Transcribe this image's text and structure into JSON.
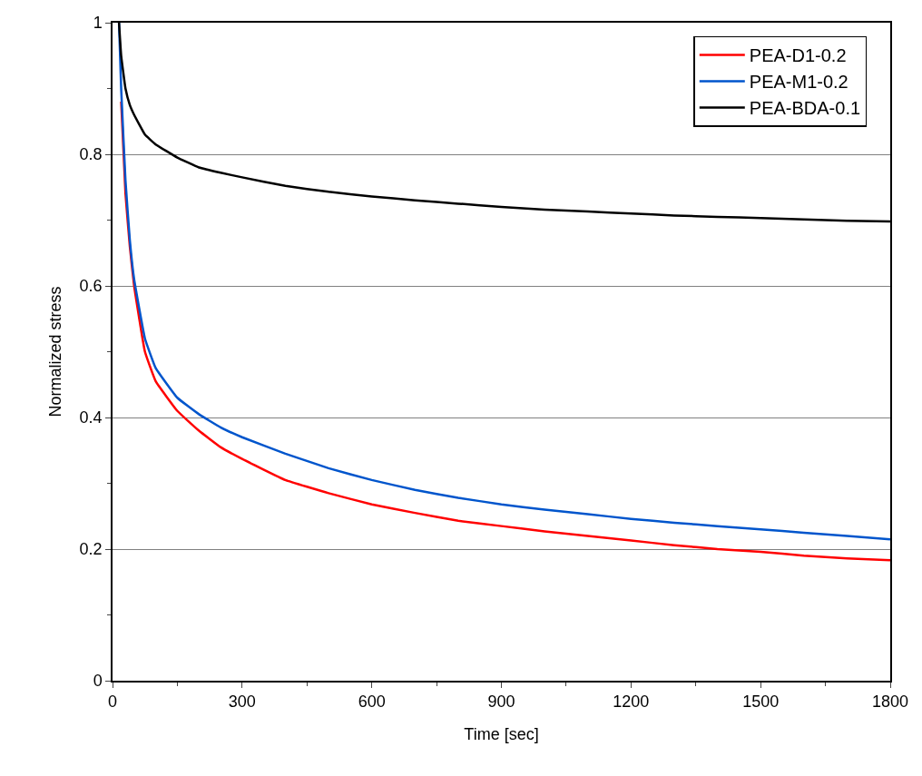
{
  "chart_data": {
    "type": "line",
    "xlabel": "Time [sec]",
    "ylabel": "Normalized stress",
    "x": [
      15,
      20,
      30,
      40,
      50,
      75,
      100,
      150,
      200,
      250,
      300,
      400,
      500,
      600,
      700,
      800,
      900,
      1000,
      1100,
      1200,
      1300,
      1400,
      1500,
      1600,
      1700,
      1800
    ],
    "series": [
      {
        "name": "PEA-D1-0.2",
        "color": "#ff0000",
        "values": [
          null,
          0.88,
          0.74,
          0.66,
          0.6,
          0.5,
          0.455,
          0.41,
          0.38,
          0.355,
          0.337,
          0.305,
          0.285,
          0.268,
          0.255,
          0.243,
          0.235,
          0.227,
          0.22,
          0.213,
          0.206,
          0.2,
          0.196,
          0.19,
          0.186,
          0.183
        ]
      },
      {
        "name": "PEA-M1-0.2",
        "color": "#0055cc",
        "values": [
          1.0,
          0.9,
          0.76,
          0.67,
          0.61,
          0.52,
          0.475,
          0.43,
          0.405,
          0.385,
          0.37,
          0.345,
          0.323,
          0.305,
          0.29,
          0.278,
          0.268,
          0.26,
          0.253,
          0.246,
          0.24,
          0.235,
          0.23,
          0.225,
          0.22,
          0.215
        ]
      },
      {
        "name": "PEA-BDA-0.1",
        "color": "#000000",
        "values": [
          1.0,
          0.95,
          0.9,
          0.875,
          0.86,
          0.83,
          0.815,
          0.795,
          0.78,
          0.772,
          0.765,
          0.752,
          0.743,
          0.736,
          0.73,
          0.725,
          0.72,
          0.716,
          0.713,
          0.71,
          0.707,
          0.705,
          0.703,
          0.701,
          0.699,
          0.698
        ]
      }
    ],
    "xlim": [
      0,
      1800
    ],
    "ylim": [
      0,
      1
    ],
    "xticks": [
      0,
      {
        "value": 150,
        "label": null
      },
      300,
      {
        "value": 450,
        "label": null
      },
      600,
      {
        "value": 750,
        "label": null
      },
      900,
      {
        "value": 1050,
        "label": null
      },
      1200,
      {
        "value": 1350,
        "label": null
      },
      1500,
      {
        "value": 1650,
        "label": null
      },
      1800
    ],
    "yticks": [
      0,
      {
        "value": 0.1,
        "label": null
      },
      0.2,
      {
        "value": 0.3,
        "label": null
      },
      0.4,
      {
        "value": 0.5,
        "label": null
      },
      0.6,
      {
        "value": 0.7,
        "label": null
      },
      0.8,
      {
        "value": 0.9,
        "label": null
      },
      1
    ],
    "grid": "y",
    "legend": "top right",
    "marker": "none",
    "line_style": "solid"
  }
}
